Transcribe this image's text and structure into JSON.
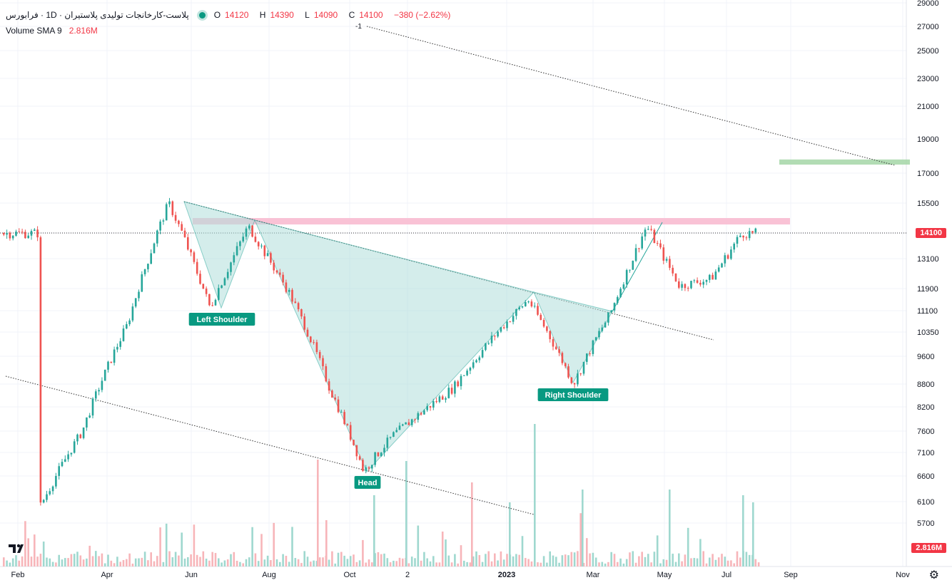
{
  "header": {
    "symbol": "پلاست-کارخانجات تولیدی پلاستیران · 1D · فرابورس",
    "status_color": "#089981",
    "ohlc": {
      "o_label": "O",
      "o": "14120",
      "h_label": "H",
      "h": "14390",
      "l_label": "L",
      "l": "14090",
      "c_label": "C",
      "c": "14100",
      "change": "−380 (−2.62%)"
    },
    "volume_label": "Volume SMA 9",
    "volume_value": "2.816M"
  },
  "price_tags": {
    "last_price": "14100",
    "volume": "2.816M"
  },
  "annotations": {
    "left_shoulder": "Left Shoulder",
    "head": "Head",
    "right_shoulder": "Right Shoulder",
    "trend_label": "-1"
  },
  "icons": {
    "logo": "tradingview-logo-icon",
    "settings": "gear-icon"
  },
  "colors": {
    "up": "#26a69a",
    "down": "#ef5350",
    "pattern_fill": "#b2dfdb",
    "resistance": "#f8bbd0",
    "target": "#a5d6a7"
  },
  "chart_data": {
    "type": "candlestick",
    "title": "",
    "x_tick_labels": [
      "Feb",
      "Apr",
      "Jun",
      "Aug",
      "Oct",
      "2",
      "2023",
      "Mar",
      "May",
      "Jul",
      "Sep",
      "Nov"
    ],
    "y_tick_labels": [
      29000,
      27000,
      25000,
      23000,
      21000,
      19000,
      17000,
      15500,
      14100,
      13100,
      11900,
      11100,
      10350,
      9600,
      8800,
      8200,
      7600,
      7100,
      6600,
      6100,
      5700
    ],
    "ylim": [
      5350,
      29000
    ],
    "y_scale": "log",
    "last_price": 14100,
    "pattern": "inverse head and shoulders",
    "pattern_points": [
      {
        "label": "Left Shoulder",
        "date": "2022-06-20",
        "price": 11200
      },
      {
        "label": "Head",
        "date": "2022-10-10",
        "price": 6700
      },
      {
        "label": "Right Shoulder",
        "date": "2023-02-20",
        "price": 8800
      }
    ],
    "resistance_level": 14500,
    "target_zone": [
      17500,
      17800
    ],
    "candles_approx": [
      {
        "d": "2022-02",
        "c": 6000
      },
      {
        "d": "2022-03",
        "c": 7600
      },
      {
        "d": "2022-04",
        "c": 10600
      },
      {
        "d": "2022-05",
        "c": 15500
      },
      {
        "d": "2022-06",
        "c": 11200
      },
      {
        "d": "2022-07",
        "c": 14400
      },
      {
        "d": "2022-08",
        "c": 11800
      },
      {
        "d": "2022-09",
        "c": 8700
      },
      {
        "d": "2022-10",
        "c": 6700
      },
      {
        "d": "2022-11",
        "c": 7500
      },
      {
        "d": "2022-12",
        "c": 8700
      },
      {
        "d": "2023-01",
        "c": 11500
      },
      {
        "d": "2023-02",
        "c": 8800
      },
      {
        "d": "2023-03",
        "c": 11000
      },
      {
        "d": "2023-04",
        "c": 14400
      },
      {
        "d": "2023-05",
        "c": 12000
      },
      {
        "d": "2023-06",
        "c": 12300
      },
      {
        "d": "2023-07",
        "c": 14100
      }
    ]
  }
}
